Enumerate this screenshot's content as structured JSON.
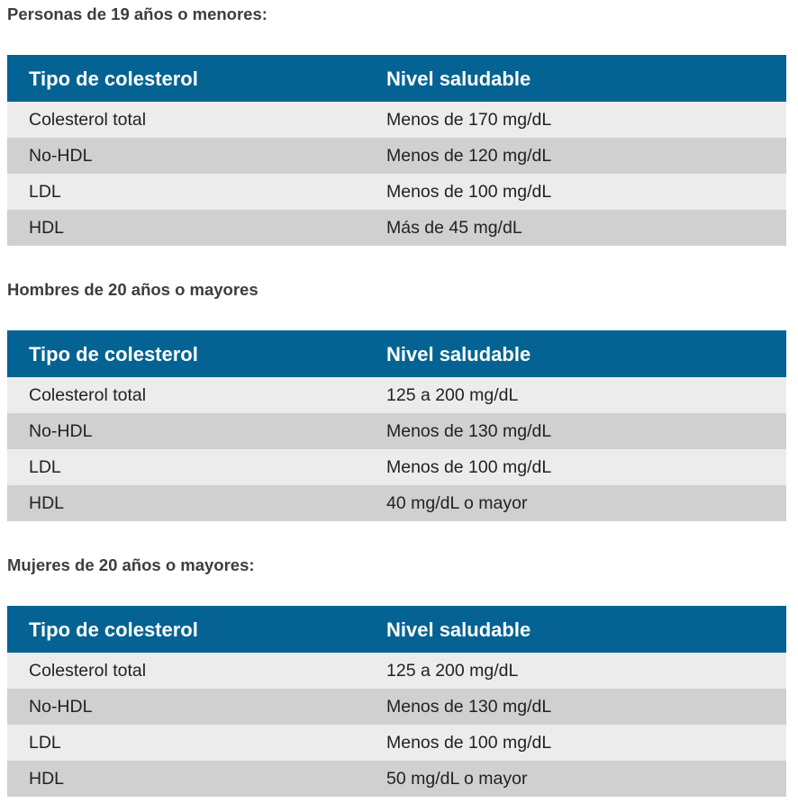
{
  "headers": {
    "col1": "Tipo de colesterol",
    "col2": "Nivel saludable"
  },
  "sections": [
    {
      "title": "Personas de 19 años o menores:",
      "rows": [
        {
          "type": "Colesterol total",
          "level": "Menos de 170 mg/dL"
        },
        {
          "type": "No-HDL",
          "level": "Menos de 120 mg/dL"
        },
        {
          "type": "LDL",
          "level": "Menos de 100 mg/dL"
        },
        {
          "type": "HDL",
          "level": "Más de 45 mg/dL"
        }
      ]
    },
    {
      "title": "Hombres de 20 años o mayores",
      "rows": [
        {
          "type": "Colesterol total",
          "level": "125 a 200 mg/dL"
        },
        {
          "type": "No-HDL",
          "level": "Menos de 130 mg/dL"
        },
        {
          "type": "LDL",
          "level": "Menos de 100 mg/dL"
        },
        {
          "type": "HDL",
          "level": "40 mg/dL o mayor"
        }
      ]
    },
    {
      "title": "Mujeres de 20 años o mayores:",
      "rows": [
        {
          "type": "Colesterol total",
          "level": "125 a 200 mg/dL"
        },
        {
          "type": "No-HDL",
          "level": "Menos de 130 mg/dL"
        },
        {
          "type": "LDL",
          "level": "Menos de 100 mg/dL"
        },
        {
          "type": "HDL",
          "level": "50 mg/dL o mayor"
        }
      ]
    }
  ],
  "colors": {
    "header_bg": "#046393",
    "row_light": "#ececec",
    "row_dark": "#d0d0d0"
  }
}
